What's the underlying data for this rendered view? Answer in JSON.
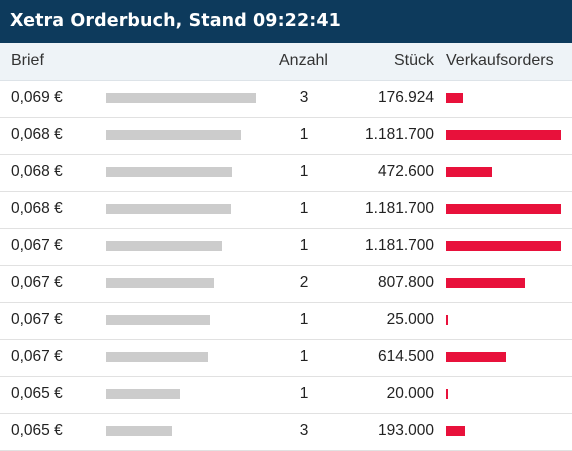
{
  "title": "Xetra Orderbuch, Stand 09:22:41",
  "columns": {
    "brief": "Brief",
    "anzahl": "Anzahl",
    "stueck": "Stück",
    "verkaufsorders": "Verkaufsorders"
  },
  "colors": {
    "title_bg": "#0d3a5c",
    "sell_bar": "#e8113b",
    "price_bar": "#cccccc"
  },
  "rows": [
    {
      "price": "0,069 €",
      "count": "3",
      "quantity": "176.924",
      "price_level": 1.0,
      "volume_share": 0.1497
    },
    {
      "price": "0,068 €",
      "count": "1",
      "quantity": "1.181.700",
      "price_level": 0.9,
      "volume_share": 1.0
    },
    {
      "price": "0,068 €",
      "count": "1",
      "quantity": "472.600",
      "price_level": 0.84,
      "volume_share": 0.3999
    },
    {
      "price": "0,068 €",
      "count": "1",
      "quantity": "1.181.700",
      "price_level": 0.83,
      "volume_share": 1.0
    },
    {
      "price": "0,067 €",
      "count": "1",
      "quantity": "1.181.700",
      "price_level": 0.77,
      "volume_share": 1.0
    },
    {
      "price": "0,067 €",
      "count": "2",
      "quantity": "807.800",
      "price_level": 0.72,
      "volume_share": 0.6836
    },
    {
      "price": "0,067 €",
      "count": "1",
      "quantity": "25.000",
      "price_level": 0.69,
      "volume_share": 0.0212
    },
    {
      "price": "0,067 €",
      "count": "1",
      "quantity": "614.500",
      "price_level": 0.68,
      "volume_share": 0.52
    },
    {
      "price": "0,065 €",
      "count": "1",
      "quantity": "20.000",
      "price_level": 0.49,
      "volume_share": 0.0169
    },
    {
      "price": "0,065 €",
      "count": "3",
      "quantity": "193.000",
      "price_level": 0.44,
      "volume_share": 0.1633
    }
  ]
}
